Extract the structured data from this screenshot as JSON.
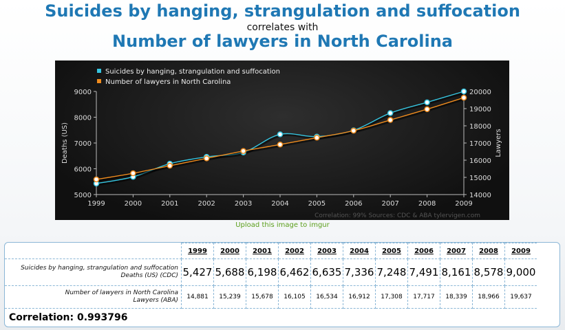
{
  "header": {
    "title_top": "Suicides by hanging, strangulation and suffocation",
    "correlates": "correlates with",
    "title_bottom": "Number of lawyers in North Carolina"
  },
  "chart_data": {
    "type": "line",
    "x": [
      1999,
      2000,
      2001,
      2002,
      2003,
      2004,
      2005,
      2006,
      2007,
      2008,
      2009
    ],
    "series": [
      {
        "name": "Suicides by hanging, strangulation and suffocation",
        "axis": "left",
        "color": "#36c5e0",
        "values": [
          5427,
          5688,
          6198,
          6462,
          6635,
          7336,
          7248,
          7491,
          8161,
          8578,
          9000
        ]
      },
      {
        "name": "Number of lawyers in North Carolina",
        "axis": "right",
        "color": "#f08c1e",
        "values": [
          14881,
          15239,
          15678,
          16105,
          16534,
          16912,
          17308,
          17717,
          18339,
          18966,
          19637
        ]
      }
    ],
    "ylabel": "Deaths (US)",
    "y2label": "Lawyers",
    "ylim": [
      5000,
      9000
    ],
    "y2lim": [
      14000,
      20000
    ],
    "yticks": [
      5000,
      6000,
      7000,
      8000,
      9000
    ],
    "y2ticks": [
      14000,
      15000,
      16000,
      17000,
      18000,
      19000,
      20000
    ],
    "grid": false,
    "legend": "top-left",
    "credits": "Correlation: 99%    Sources: CDC & ABA   tylervigen.com"
  },
  "upload_link": "Upload this image to imgur",
  "table": {
    "years": [
      "1999",
      "2000",
      "2001",
      "2002",
      "2003",
      "2004",
      "2005",
      "2006",
      "2007",
      "2008",
      "2009"
    ],
    "row1_label": "Suicides by hanging, strangulation and suffocation",
    "row1_sub": "Deaths (US) (CDC)",
    "row1": [
      "5,427",
      "5,688",
      "6,198",
      "6,462",
      "6,635",
      "7,336",
      "7,248",
      "7,491",
      "8,161",
      "8,578",
      "9,000"
    ],
    "row2_label": "Number of lawyers in North Carolina",
    "row2_sub": "Lawyers (ABA)",
    "row2": [
      "14,881",
      "15,239",
      "15,678",
      "16,105",
      "16,534",
      "16,912",
      "17,308",
      "17,717",
      "18,339",
      "18,966",
      "19,637"
    ],
    "correlation": "Correlation: 0.993796"
  }
}
